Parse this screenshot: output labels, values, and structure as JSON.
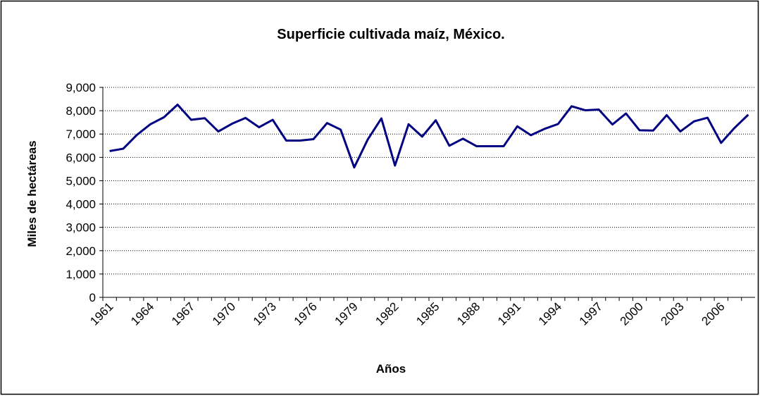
{
  "chart_data": {
    "type": "line",
    "title": "Superficie cultivada maíz, México.",
    "x_label": "Años",
    "y_label": "Miles de hectáreas",
    "categories": [
      "1961",
      null,
      null,
      "1964",
      null,
      null,
      "1967",
      null,
      null,
      "1970",
      null,
      null,
      "1973",
      null,
      null,
      "1976",
      null,
      null,
      "1979",
      null,
      null,
      "1982",
      null,
      null,
      "1985",
      null,
      null,
      "1988",
      null,
      null,
      "1991",
      null,
      null,
      "1994",
      null,
      null,
      "1997",
      null,
      null,
      "2000",
      null,
      null,
      "2003",
      null,
      null,
      "2006",
      null,
      null
    ],
    "series": [
      {
        "name": "Superficie",
        "color": "#000080",
        "values": [
          6270,
          6370,
          6960,
          7420,
          7720,
          8260,
          7610,
          7680,
          7110,
          7440,
          7690,
          7290,
          7610,
          6720,
          6720,
          6780,
          7470,
          7190,
          5570,
          6770,
          7670,
          5650,
          7420,
          6890,
          7590,
          6500,
          6800,
          6480,
          6480,
          6480,
          7330,
          6950,
          7220,
          7430,
          8190,
          8020,
          8050,
          7410,
          7880,
          7160,
          7150,
          7810,
          7110,
          7540,
          7700,
          6620,
          7270,
          7830
        ]
      }
    ],
    "ylim": [
      0,
      9000
    ],
    "yticks": [
      0,
      {
        "value": 1000,
        "label": "1,000"
      },
      {
        "value": 2000,
        "label": "2,000"
      },
      {
        "value": 3000,
        "label": "3,000"
      },
      {
        "value": 4000,
        "label": "4,000"
      },
      {
        "value": 5000,
        "label": "5,000"
      },
      {
        "value": 6000,
        "label": "6,000"
      },
      {
        "value": 7000,
        "label": "7,000"
      },
      {
        "value": 8000,
        "label": "8,000"
      },
      {
        "value": 9000,
        "label": "9,000"
      }
    ],
    "grid": true
  }
}
